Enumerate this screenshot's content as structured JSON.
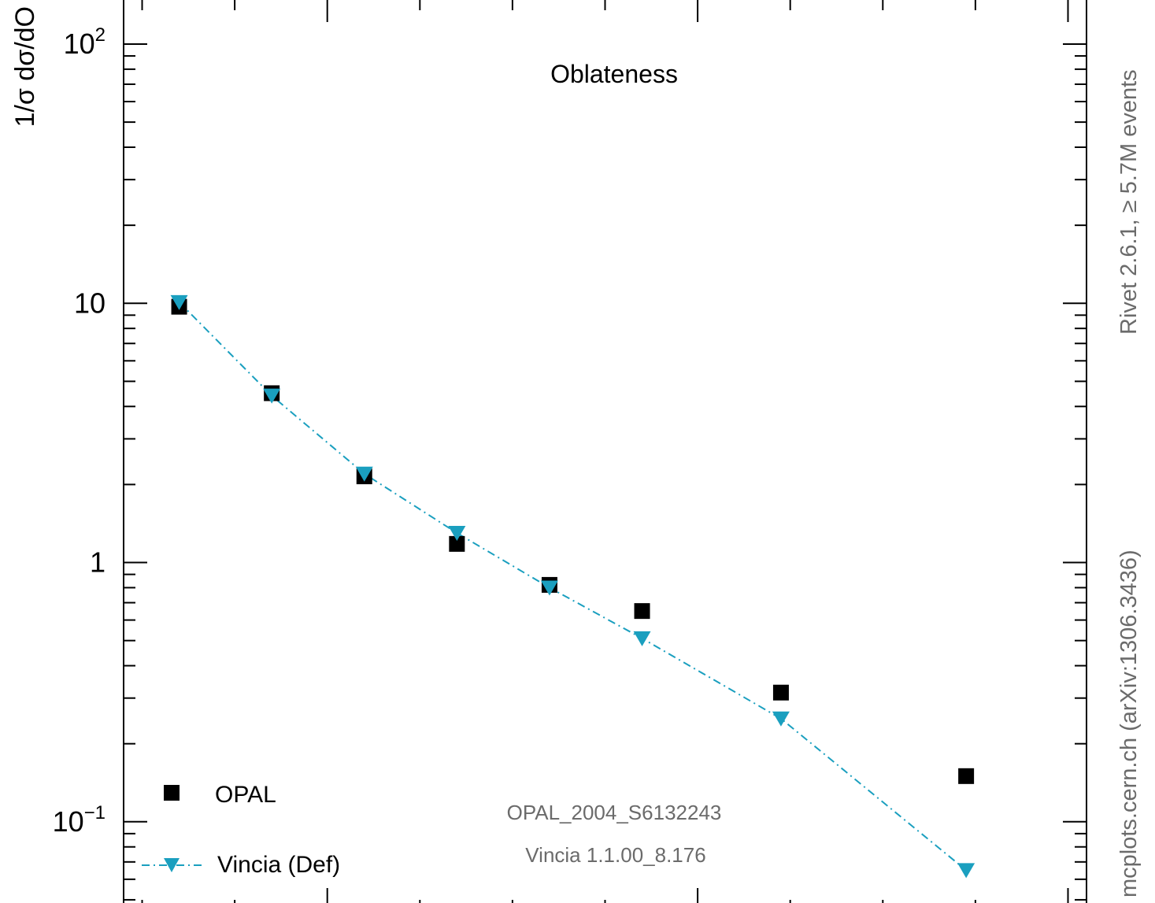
{
  "chart_data": {
    "type": "scatter",
    "title": "Oblateness",
    "ylabel": "1/σ dσ/dO",
    "xlabel": "",
    "yscale": "log",
    "ylim": [
      0.045,
      150
    ],
    "xlim": [
      0.0,
      0.52
    ],
    "ytick_labels": [
      {
        "value": 100,
        "base": "10",
        "exp": "2"
      },
      {
        "value": 10,
        "base": "10",
        "exp": ""
      },
      {
        "value": 1,
        "base": "1",
        "exp": ""
      },
      {
        "value": 0.1,
        "base": "10",
        "exp": "−1"
      }
    ],
    "grid": false,
    "legend_position": "bottom-left",
    "series": [
      {
        "name": "OPAL",
        "marker": "square",
        "color": "#000000",
        "x": [
          0.03,
          0.08,
          0.13,
          0.18,
          0.23,
          0.28,
          0.355,
          0.455
        ],
        "values": [
          9.7,
          4.5,
          2.15,
          1.18,
          0.82,
          0.65,
          0.315,
          0.15
        ]
      },
      {
        "name": "Vincia (Def)",
        "marker": "triangle-down",
        "line": "dash-dot",
        "color": "#1a9fbf",
        "x": [
          0.03,
          0.08,
          0.13,
          0.18,
          0.23,
          0.28,
          0.355,
          0.455
        ],
        "values": [
          10.1,
          4.4,
          2.2,
          1.3,
          0.8,
          0.51,
          0.25,
          0.065
        ]
      }
    ],
    "annotations": {
      "analysis": "OPAL_2004_S6132243",
      "generator": "Vincia 1.1.00_8.176",
      "side_top": "Rivet 2.6.1, ≥ 5.7M events",
      "side_bottom": "mcplots.cern.ch (arXiv:1306.3436)"
    }
  }
}
